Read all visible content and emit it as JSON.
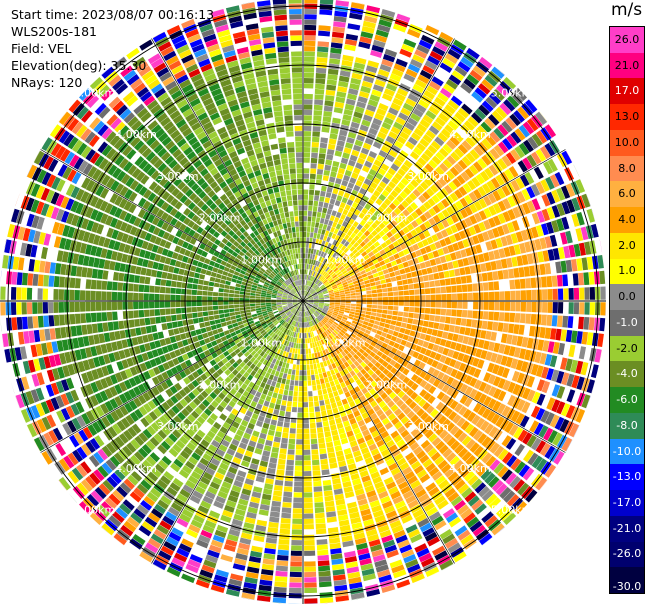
{
  "info": {
    "start_time": "Start time: 2023/08/07 00:16:13",
    "station": "WLS200s-181",
    "field": "Field: VEL",
    "elevation": "Elevation(deg): 35.30",
    "nrays": "NRays: 120"
  },
  "chart_data": {
    "type": "heatmap",
    "projection": "polar (PPI)",
    "field": "VEL",
    "units": "m/s",
    "rings_km": [
      1.0,
      2.0,
      3.0,
      4.0,
      5.0
    ],
    "ring_labels": [
      "1.00km",
      "2.00km",
      "3.00km",
      "4.00km",
      "5.00km"
    ],
    "value_range": [
      -30.0,
      26.0
    ],
    "colorbar_ticks": [
      "26.0",
      "21.0",
      "17.0",
      "13.0",
      "10.0",
      "8.0",
      "6.0",
      "4.0",
      "2.0",
      "1.0",
      "0.0",
      "-1.0",
      "-2.0",
      "-4.0",
      "-6.0",
      "-8.0",
      "-10.0",
      "-13.0",
      "-17.0",
      "-21.0",
      "-26.0",
      "-30.0"
    ],
    "colorbar_colors": [
      "#ff3ec8",
      "#ff0080",
      "#e00000",
      "#ff2800",
      "#ff5a1e",
      "#ff8c50",
      "#ffb040",
      "#ffa000",
      "#ffe600",
      "#ffff00",
      "#8c8c8c",
      "#6e6e6e",
      "#9acd32",
      "#6b8e23",
      "#228b22",
      "#2e8b57",
      "#1e90ff",
      "#0000ff",
      "#0000cd",
      "#000080",
      "#00006e",
      "#000040"
    ],
    "pattern": "positive (yellow/orange) to the east and south-east, negative (green) to the north-west and west, near-zero (gray) bands; noisy multicolor speckle beyond about 4.2 km"
  }
}
